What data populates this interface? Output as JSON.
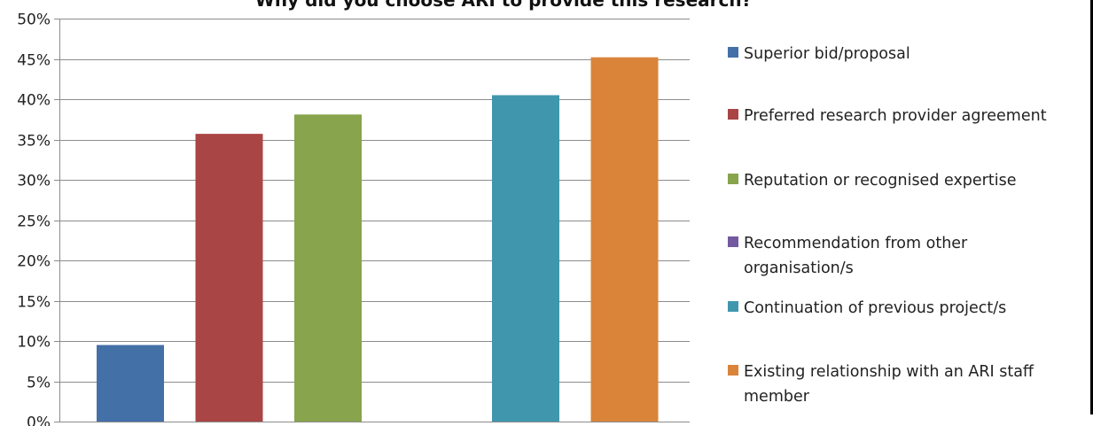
{
  "chart_data": {
    "type": "bar",
    "title": "Why did you choose ARI to provide this research?",
    "xlabel": "",
    "ylabel": "",
    "ylim": [
      0,
      50
    ],
    "y_ticks": [
      "0%",
      "5%",
      "10%",
      "15%",
      "20%",
      "25%",
      "30%",
      "35%",
      "40%",
      "45%",
      "50%"
    ],
    "grid": true,
    "legend_position": "right",
    "categories": [
      "Superior bid/proposal",
      "Preferred research provider agreement",
      "Reputation or recognised expertise",
      "Recommendation from other organisation/s",
      "Continuation of previous project/s",
      "Existing relationship with an ARI staff member"
    ],
    "values": [
      9.5,
      35.7,
      38.1,
      0,
      40.5,
      45.2
    ],
    "colors": [
      "#4470A8",
      "#A94544",
      "#88A44C",
      "#7359A0",
      "#4097AD",
      "#DA843A"
    ],
    "legend": [
      {
        "lines": [
          "Superior bid/proposal"
        ]
      },
      {
        "lines": [
          "Preferred research provider agreement"
        ]
      },
      {
        "lines": [
          "Reputation or recognised expertise"
        ]
      },
      {
        "lines": [
          "Recommendation from other",
          "organisation/s"
        ]
      },
      {
        "lines": [
          "Continuation of previous project/s"
        ]
      },
      {
        "lines": [
          "Existing relationship with an ARI staff",
          "member"
        ]
      }
    ]
  }
}
